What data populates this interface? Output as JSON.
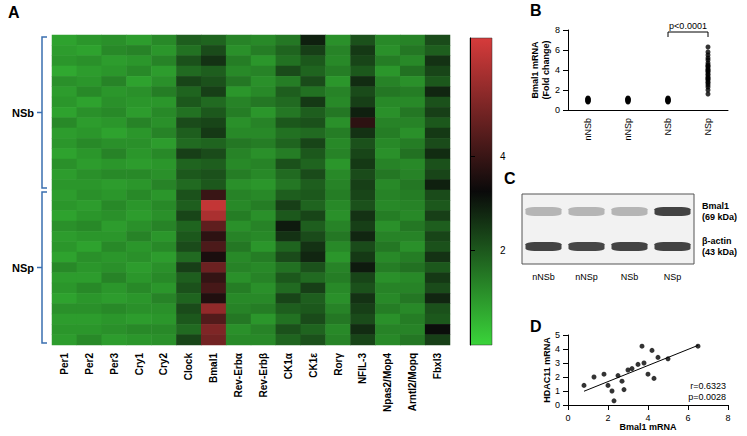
{
  "chart_data": [
    {
      "type": "heatmap",
      "title": "A",
      "categories": [
        "Per1",
        "Per2",
        "Per3",
        "Cry1",
        "Cry2",
        "Clock",
        "Bmal1",
        "Rev-Erbα",
        "Rev-Erbβ",
        "CK1α",
        "CK1ε",
        "Rorγ",
        "NFIL-3",
        "Npas2/Mop4",
        "Arntl2/Mopq",
        "Fbxl3"
      ],
      "rows": [
        null,
        null,
        null,
        null,
        null,
        null,
        null,
        null,
        null,
        null,
        null,
        null,
        null,
        null,
        null,
        null,
        null,
        null,
        null,
        null,
        null,
        null,
        null,
        null,
        null,
        null,
        null,
        null,
        null,
        null
      ],
      "row_groups": [
        {
          "label": "NSb",
          "start": 0,
          "end": 14
        },
        {
          "label": "NSp",
          "start": 15,
          "end": 29
        }
      ],
      "cells": [
        [
          0.8,
          1.0,
          1.1,
          0.9,
          1.2,
          1.9,
          1.8,
          1.3,
          1.2,
          1.5,
          2.9,
          1.1,
          2.1,
          1.2,
          1.3,
          2.2
        ],
        [
          0.9,
          0.8,
          1.2,
          1.3,
          1.0,
          1.6,
          2.2,
          1.1,
          1.4,
          1.8,
          2.4,
          1.3,
          2.5,
          1.1,
          1.5,
          1.9
        ],
        [
          1.0,
          1.1,
          0.9,
          1.0,
          1.3,
          2.1,
          2.6,
          1.4,
          1.0,
          1.6,
          2.0,
          1.2,
          2.3,
          1.4,
          1.2,
          2.6
        ],
        [
          0.7,
          0.9,
          1.0,
          1.2,
          0.9,
          1.7,
          1.9,
          1.2,
          1.3,
          2.2,
          1.8,
          1.4,
          2.0,
          1.0,
          1.6,
          2.3
        ],
        [
          1.1,
          1.0,
          1.3,
          0.8,
          1.1,
          2.3,
          2.1,
          1.5,
          1.1,
          1.4,
          2.2,
          1.0,
          2.7,
          1.3,
          1.1,
          2.0
        ],
        [
          0.9,
          1.2,
          1.0,
          1.1,
          1.4,
          1.8,
          2.4,
          1.0,
          1.2,
          1.9,
          1.6,
          1.3,
          2.2,
          1.5,
          1.4,
          2.8
        ],
        [
          1.0,
          0.8,
          1.1,
          1.0,
          1.0,
          2.0,
          1.7,
          1.3,
          1.5,
          1.7,
          2.5,
          1.2,
          2.4,
          1.2,
          1.2,
          2.1
        ],
        [
          0.8,
          1.1,
          1.2,
          0.9,
          1.2,
          1.6,
          2.0,
          1.4,
          1.0,
          1.5,
          1.9,
          1.5,
          2.9,
          1.1,
          1.5,
          2.4
        ],
        [
          1.2,
          0.9,
          1.0,
          1.3,
          1.1,
          2.2,
          2.3,
          1.1,
          1.3,
          2.0,
          2.1,
          1.1,
          3.8,
          1.3,
          1.3,
          2.0
        ],
        [
          0.9,
          1.0,
          0.8,
          1.0,
          1.3,
          1.9,
          2.5,
          1.2,
          1.2,
          1.6,
          1.7,
          1.4,
          2.6,
          1.4,
          1.1,
          2.5
        ],
        [
          1.0,
          1.2,
          1.1,
          1.1,
          0.9,
          1.7,
          1.8,
          1.5,
          1.4,
          1.8,
          2.3,
          1.2,
          2.1,
          1.2,
          1.4,
          2.2
        ],
        [
          0.8,
          1.0,
          1.3,
          1.0,
          1.2,
          2.4,
          2.2,
          1.3,
          1.1,
          1.4,
          2.0,
          1.3,
          2.3,
          1.1,
          1.6,
          2.7
        ],
        [
          1.1,
          0.9,
          1.0,
          0.9,
          1.0,
          1.8,
          1.9,
          1.2,
          1.3,
          2.1,
          1.8,
          1.0,
          2.5,
          1.3,
          1.2,
          2.1
        ],
        [
          0.9,
          1.1,
          1.2,
          1.2,
          1.1,
          2.0,
          2.1,
          1.4,
          1.2,
          1.7,
          2.2,
          1.2,
          2.2,
          1.5,
          1.3,
          2.3
        ],
        [
          1.0,
          1.0,
          0.9,
          1.0,
          1.3,
          1.7,
          2.0,
          1.1,
          1.0,
          1.5,
          1.9,
          1.3,
          2.4,
          1.2,
          1.5,
          2.9
        ],
        [
          0.9,
          1.1,
          1.0,
          1.2,
          1.0,
          2.1,
          4.0,
          1.3,
          1.2,
          1.9,
          2.0,
          1.4,
          2.3,
          1.3,
          1.4,
          2.2
        ],
        [
          1.0,
          0.9,
          1.2,
          1.0,
          1.2,
          1.9,
          6.2,
          1.2,
          1.4,
          2.4,
          1.8,
          1.2,
          2.1,
          1.2,
          1.3,
          2.0
        ],
        [
          0.8,
          1.0,
          1.1,
          0.9,
          1.1,
          2.3,
          5.8,
          1.4,
          1.1,
          2.0,
          2.3,
          1.1,
          2.6,
          1.4,
          1.2,
          2.4
        ],
        [
          1.1,
          1.2,
          0.9,
          1.1,
          1.3,
          1.8,
          4.6,
          1.1,
          1.3,
          3.0,
          1.9,
          1.3,
          2.4,
          1.1,
          1.5,
          1.9
        ],
        [
          0.9,
          1.0,
          1.0,
          1.3,
          1.0,
          2.0,
          3.8,
          1.3,
          1.2,
          2.6,
          2.2,
          1.5,
          2.8,
          1.3,
          1.3,
          2.3
        ],
        [
          1.0,
          0.8,
          1.2,
          1.0,
          1.2,
          2.2,
          4.3,
          1.5,
          1.0,
          1.8,
          2.6,
          1.2,
          2.2,
          1.5,
          1.1,
          2.1
        ],
        [
          0.8,
          1.1,
          1.0,
          1.1,
          0.9,
          1.7,
          3.5,
          1.2,
          1.4,
          2.2,
          2.8,
          1.0,
          2.5,
          1.2,
          1.4,
          2.6
        ],
        [
          1.2,
          1.0,
          1.1,
          0.9,
          1.1,
          2.4,
          4.8,
          1.3,
          1.2,
          1.6,
          2.1,
          1.3,
          3.0,
          1.4,
          1.6,
          2.0
        ],
        [
          0.9,
          0.9,
          1.3,
          1.0,
          1.2,
          1.9,
          3.9,
          1.1,
          1.3,
          2.0,
          1.7,
          1.4,
          2.3,
          1.1,
          1.2,
          2.5
        ],
        [
          1.0,
          1.2,
          1.0,
          1.2,
          1.0,
          2.1,
          4.2,
          1.4,
          1.1,
          1.7,
          2.4,
          1.2,
          2.1,
          1.3,
          1.3,
          2.2
        ],
        [
          0.8,
          1.0,
          0.9,
          1.0,
          1.3,
          1.8,
          3.6,
          1.2,
          1.2,
          2.3,
          1.9,
          1.1,
          2.6,
          1.2,
          1.5,
          2.8
        ],
        [
          1.1,
          1.1,
          1.2,
          1.1,
          1.1,
          2.2,
          5.4,
          1.3,
          1.4,
          1.9,
          2.0,
          1.3,
          2.4,
          1.4,
          1.2,
          2.1
        ],
        [
          0.9,
          0.9,
          1.0,
          0.9,
          1.0,
          2.0,
          4.4,
          1.5,
          1.0,
          1.6,
          2.2,
          1.5,
          2.2,
          1.1,
          1.4,
          2.0
        ],
        [
          1.0,
          1.0,
          1.1,
          1.2,
          1.2,
          1.7,
          5.1,
          1.1,
          1.3,
          2.1,
          1.8,
          1.2,
          2.7,
          1.3,
          1.3,
          3.2
        ],
        [
          0.9,
          1.2,
          0.9,
          1.0,
          1.1,
          2.3,
          4.9,
          1.2,
          1.2,
          1.8,
          2.1,
          1.3,
          2.3,
          1.2,
          1.5,
          2.4
        ]
      ],
      "colors": [
        "#3ad43a",
        "#0a0a0a",
        "#d63b3b"
      ],
      "colorbar_range": [
        0,
        6.5
      ],
      "colorbar_ticks": [
        2,
        4
      ],
      "tick_labels": "x",
      "grid": false
    },
    {
      "type": "scatter",
      "title": "B",
      "categories": [
        "nNSb",
        "nNSp",
        "NSb",
        "NSp"
      ],
      "values": [
        [
          0.8,
          0.9,
          1.0,
          1.1,
          1.2,
          0.95,
          1.05,
          0.85,
          1.15,
          1.0,
          0.9,
          1.1
        ],
        [
          0.85,
          1.0,
          1.1,
          0.9,
          1.2,
          1.05,
          0.95,
          1.15,
          1.0,
          0.8,
          1.1,
          1.0
        ],
        [
          0.9,
          1.0,
          0.8,
          1.1,
          1.05,
          0.95,
          1.2,
          0.85,
          1.0,
          1.15,
          0.9,
          1.0
        ],
        [
          1.6,
          2.0,
          2.3,
          2.5,
          2.8,
          3.0,
          3.1,
          3.3,
          3.5,
          3.6,
          3.8,
          4.0,
          4.1,
          4.3,
          4.5,
          4.7,
          5.0,
          5.2,
          5.5,
          5.8,
          6.3,
          2.7,
          3.9,
          4.4,
          3.2
        ]
      ],
      "ylabel": "Bmal1 mRNA\n(Fold change)",
      "ylim": [
        0,
        8
      ],
      "yticks": [
        0,
        2,
        4,
        6,
        8
      ],
      "annotation": "p<0.0001",
      "color": "#000000",
      "marker": "circle",
      "grid": false
    },
    {
      "type": "blot",
      "title": "C",
      "categories": [
        "nNSb",
        "nNSp",
        "NSb",
        "NSp"
      ],
      "bands": [
        {
          "label": "Bmal1\n(69 kDa)",
          "intensity": [
            0.3,
            0.3,
            0.3,
            0.9
          ]
        },
        {
          "label": "β-actin\n(43 kDa)",
          "intensity": [
            0.9,
            0.88,
            0.9,
            0.9
          ]
        }
      ]
    },
    {
      "type": "scatter",
      "title": "D",
      "x": [
        0.8,
        1.3,
        1.8,
        2.0,
        2.2,
        2.3,
        2.5,
        2.7,
        2.8,
        3.0,
        3.2,
        3.5,
        3.7,
        3.8,
        4.0,
        4.2,
        4.3,
        4.5,
        5.0,
        6.5
      ],
      "values": [
        1.4,
        2.0,
        2.2,
        1.4,
        1.0,
        0.3,
        2.1,
        1.7,
        1.1,
        2.5,
        2.6,
        2.9,
        4.2,
        3.0,
        2.2,
        3.9,
        1.9,
        3.4,
        3.3,
        4.2
      ],
      "xlabel": "Bmal1 mRNA",
      "ylabel": "HDAC11 mRNA",
      "xlim": [
        0,
        8
      ],
      "xticks": [
        0,
        2,
        4,
        6,
        8
      ],
      "ylim": [
        0,
        5
      ],
      "yticks": [
        0,
        1,
        2,
        3,
        4,
        5
      ],
      "annotation": [
        "r=0.6323",
        "p=0.0028"
      ],
      "color": "#000000",
      "marker": "circle",
      "grid": false
    }
  ]
}
